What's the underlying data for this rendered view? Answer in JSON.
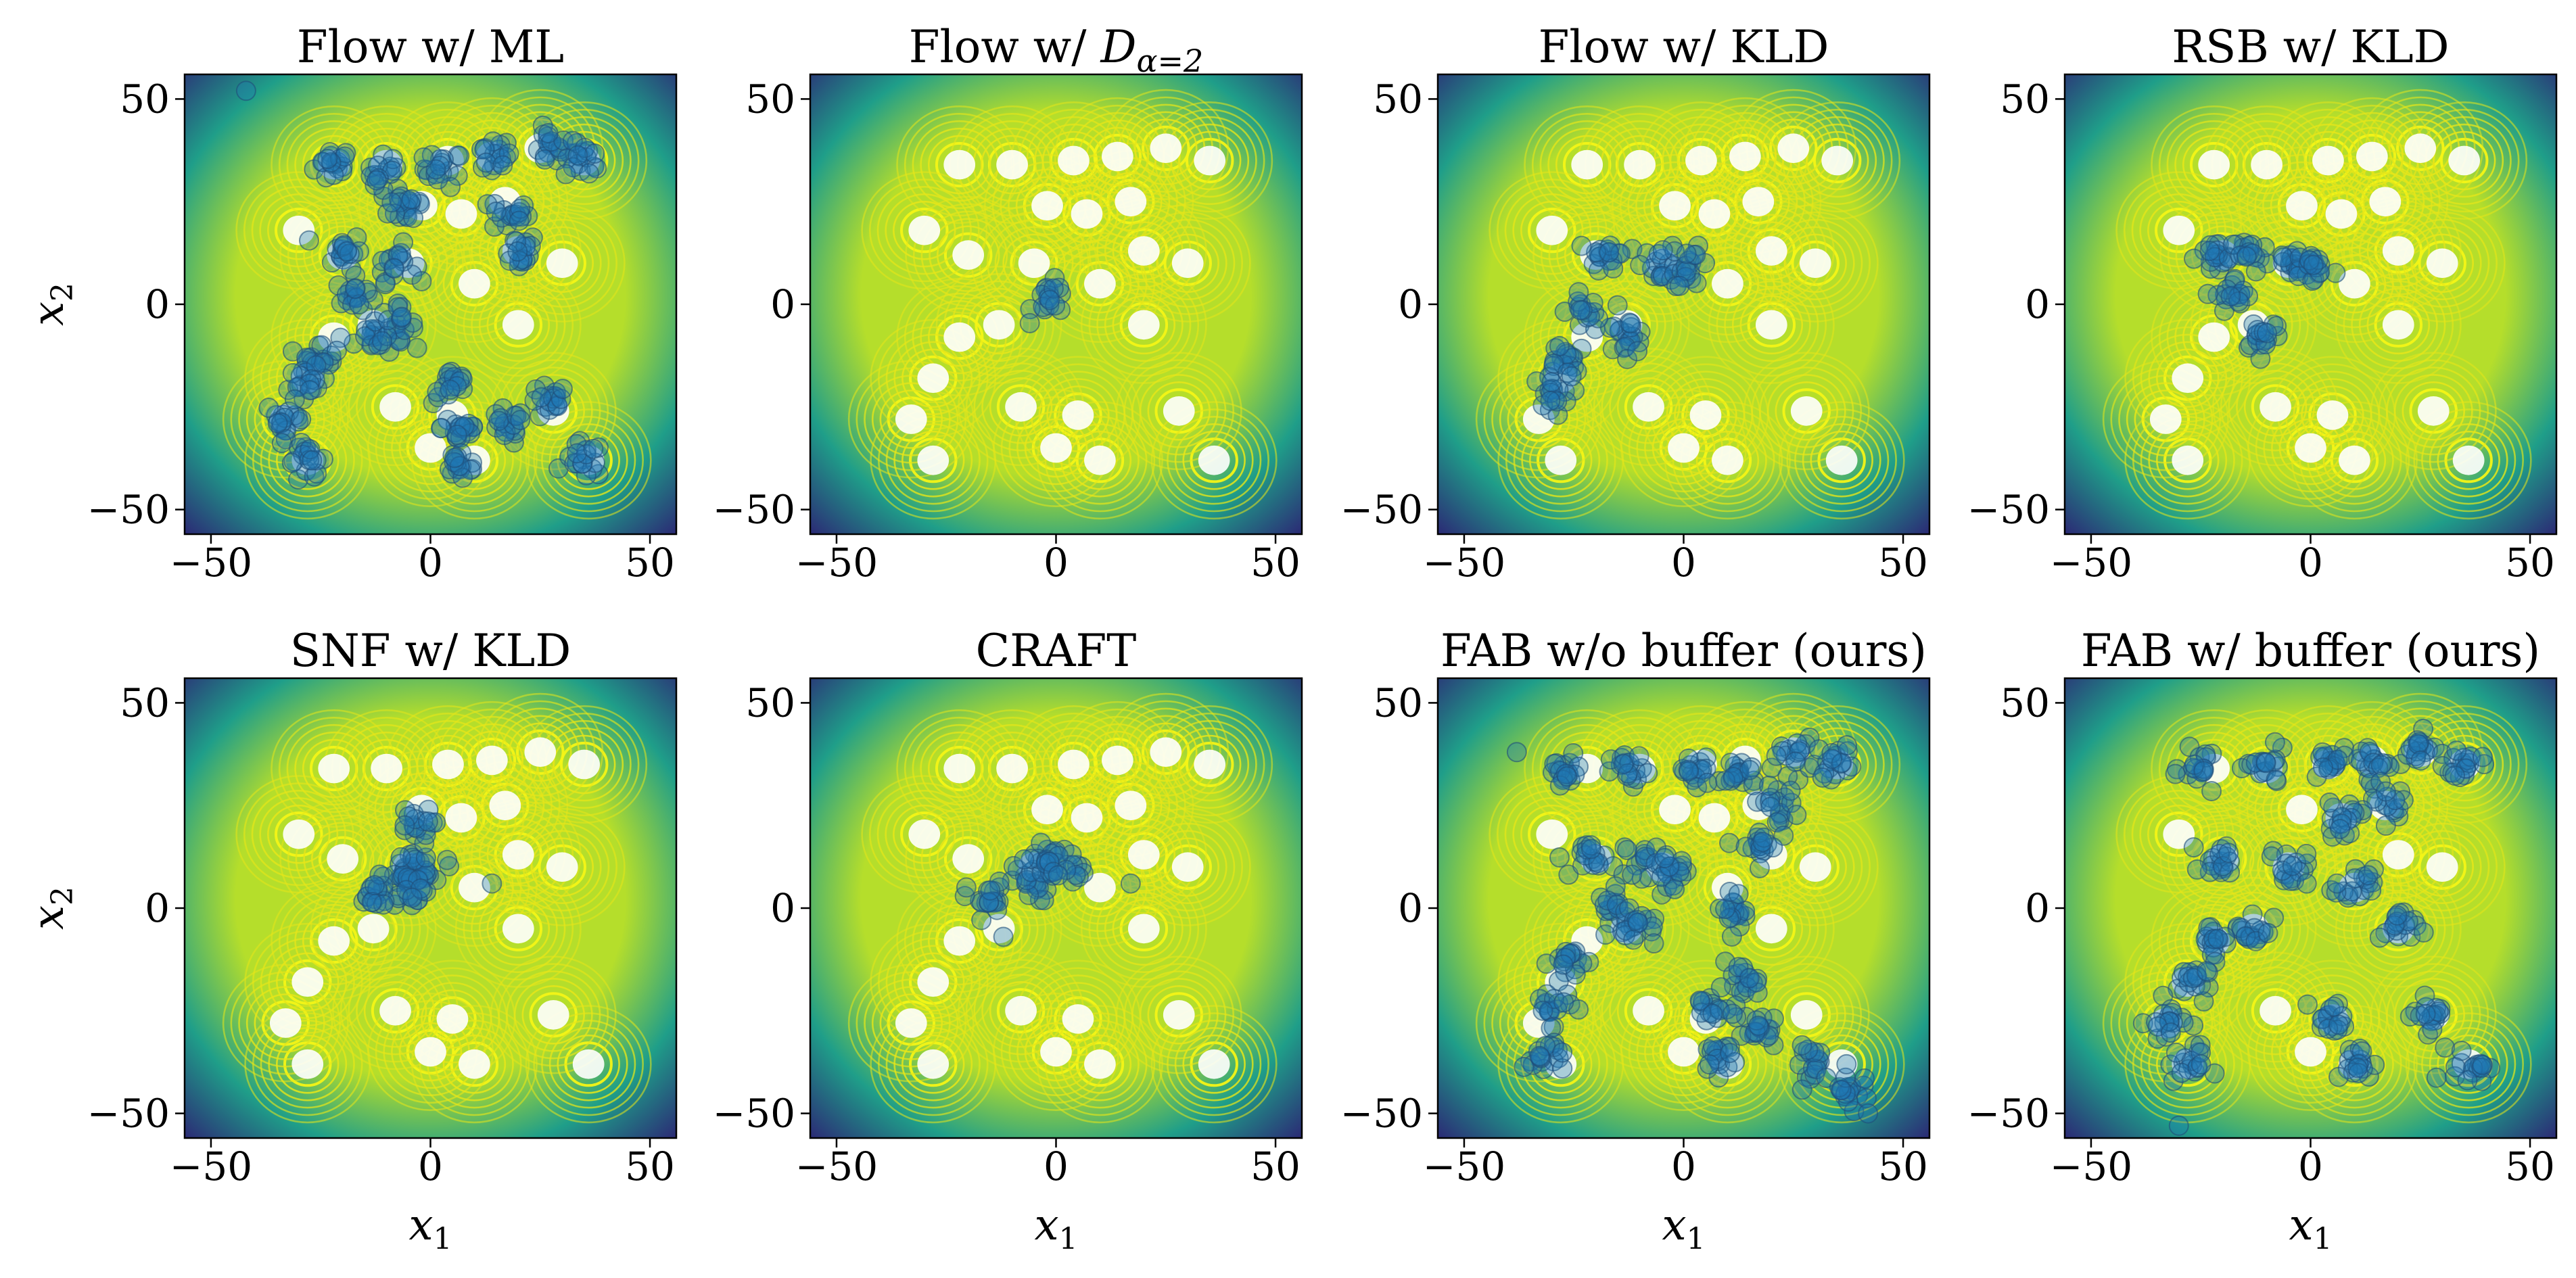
{
  "figure": {
    "xlabel": "x",
    "xlabel_sub": "1",
    "ylabel": "x",
    "ylabel_sub": "2"
  },
  "colors": {
    "background_low": "#2b2a75",
    "background_mid": "#1f9e89",
    "background_high": "#b5de2b",
    "contour": "#e6e619",
    "contour_inner": "#f4f416",
    "sample_fill": "#1f77b4",
    "sample_edge": "#1f4e79"
  },
  "chart_data": [
    {
      "type": "scatter",
      "title": "Flow w/ ML",
      "xlim": [
        -56,
        56
      ],
      "ylim": [
        -56,
        56
      ],
      "xticks": [
        -50,
        0,
        50
      ],
      "yticks": [
        -50,
        0,
        50
      ],
      "background": "contour",
      "clusters": [
        [
          -22,
          34
        ],
        [
          -10,
          32
        ],
        [
          3,
          33
        ],
        [
          14,
          36
        ],
        [
          27,
          38
        ],
        [
          35,
          35
        ],
        [
          18,
          22
        ],
        [
          20,
          13
        ],
        [
          -5,
          24
        ],
        [
          -20,
          13
        ],
        [
          -8,
          10
        ],
        [
          -17,
          2
        ],
        [
          -13,
          -8
        ],
        [
          -25,
          -12
        ],
        [
          -28,
          -20
        ],
        [
          -33,
          -28
        ],
        [
          -28,
          -38
        ],
        [
          -8,
          -5
        ],
        [
          5,
          -20
        ],
        [
          7,
          -30
        ],
        [
          7,
          -39
        ],
        [
          17,
          -30
        ],
        [
          27,
          -24
        ],
        [
          35,
          -38
        ]
      ],
      "outliers": [
        [
          -42,
          52
        ]
      ]
    },
    {
      "type": "scatter",
      "title": "Flow w/ ",
      "title_symbol": "D",
      "title_subscript": "α=2",
      "xlim": [
        -56,
        56
      ],
      "ylim": [
        -56,
        56
      ],
      "xticks": [
        -50,
        0,
        50
      ],
      "yticks": [
        -50,
        0,
        50
      ],
      "background": "contour",
      "clusters": [
        [
          -1,
          1
        ]
      ],
      "outliers": []
    },
    {
      "type": "scatter",
      "title": "Flow w/ KLD",
      "xlim": [
        -56,
        56
      ],
      "ylim": [
        -56,
        56
      ],
      "xticks": [
        -50,
        0,
        50
      ],
      "yticks": [
        -50,
        0,
        50
      ],
      "background": "contour",
      "clusters": [
        [
          -17,
          12
        ],
        [
          -5,
          10
        ],
        [
          2,
          9
        ],
        [
          -13,
          -8
        ],
        [
          -22,
          -2
        ],
        [
          -28,
          -14
        ],
        [
          -30,
          -22
        ]
      ],
      "outliers": []
    },
    {
      "type": "scatter",
      "title": "RSB w/ KLD",
      "xlim": [
        -56,
        56
      ],
      "ylim": [
        -56,
        56
      ],
      "xticks": [
        -50,
        0,
        50
      ],
      "yticks": [
        -50,
        0,
        50
      ],
      "background": "contour",
      "clusters": [
        [
          -22,
          11
        ],
        [
          -14,
          12
        ],
        [
          -4,
          10
        ],
        [
          1,
          9
        ],
        [
          -11,
          -7
        ],
        [
          -17,
          2
        ]
      ],
      "outliers": []
    },
    {
      "type": "scatter",
      "title": "SNF w/ KLD",
      "xlim": [
        -56,
        56
      ],
      "ylim": [
        -56,
        56
      ],
      "xticks": [
        -50,
        0,
        50
      ],
      "yticks": [
        -50,
        0,
        50
      ],
      "background": "contour",
      "clusters": [
        [
          -6,
          9
        ],
        [
          -1,
          10
        ],
        [
          -5,
          5
        ],
        [
          -13,
          3
        ],
        [
          -4,
          20
        ]
      ],
      "outliers": [
        [
          14,
          6
        ]
      ]
    },
    {
      "type": "scatter",
      "title": "CRAFT",
      "xlim": [
        -56,
        56
      ],
      "ylim": [
        -56,
        56
      ],
      "xticks": [
        -50,
        0,
        50
      ],
      "yticks": [
        -50,
        0,
        50
      ],
      "background": "contour",
      "clusters": [
        [
          -6,
          6
        ],
        [
          -3,
          12
        ],
        [
          2,
          10
        ],
        [
          -16,
          2
        ]
      ],
      "outliers": [
        [
          17,
          6
        ],
        [
          -12,
          -7
        ]
      ]
    },
    {
      "type": "scatter",
      "title": "FAB w/o buffer (ours)",
      "xlim": [
        -56,
        56
      ],
      "ylim": [
        -56,
        56
      ],
      "xticks": [
        -50,
        0,
        50
      ],
      "yticks": [
        -50,
        0,
        50
      ],
      "background": "contour",
      "clusters": [
        [
          -27,
          33
        ],
        [
          -12,
          33
        ],
        [
          3,
          33
        ],
        [
          13,
          33
        ],
        [
          25,
          37
        ],
        [
          35,
          36
        ],
        [
          21,
          25
        ],
        [
          17,
          15
        ],
        [
          12,
          0
        ],
        [
          13,
          -18
        ],
        [
          18,
          -30
        ],
        [
          30,
          -38
        ],
        [
          -20,
          12
        ],
        [
          -9,
          12
        ],
        [
          -3,
          8
        ],
        [
          -15,
          0
        ],
        [
          -26,
          -13
        ],
        [
          -30,
          -24
        ],
        [
          -32,
          -36
        ],
        [
          -10,
          -5
        ],
        [
          6,
          -25
        ],
        [
          8,
          -36
        ],
        [
          38,
          -44
        ]
      ],
      "outliers": [
        [
          42,
          -50
        ],
        [
          -38,
          38
        ]
      ]
    },
    {
      "type": "scatter",
      "title": "FAB w/ buffer (ours)",
      "xlim": [
        -56,
        56
      ],
      "ylim": [
        -56,
        56
      ],
      "xticks": [
        -50,
        0,
        50
      ],
      "yticks": [
        -50,
        0,
        50
      ],
      "background": "contour",
      "clusters": [
        [
          -25,
          34
        ],
        [
          -10,
          34
        ],
        [
          4,
          35
        ],
        [
          14,
          36
        ],
        [
          25,
          38
        ],
        [
          35,
          35
        ],
        [
          17,
          25
        ],
        [
          7,
          22
        ],
        [
          -20,
          12
        ],
        [
          -5,
          10
        ],
        [
          -13,
          -5
        ],
        [
          -22,
          -8
        ],
        [
          -28,
          -18
        ],
        [
          -33,
          -28
        ],
        [
          -28,
          -38
        ],
        [
          20,
          -5
        ],
        [
          10,
          5
        ],
        [
          5,
          -27
        ],
        [
          10,
          -38
        ],
        [
          28,
          -26
        ],
        [
          36,
          -38
        ]
      ],
      "outliers": [
        [
          -30,
          -53
        ]
      ]
    }
  ]
}
